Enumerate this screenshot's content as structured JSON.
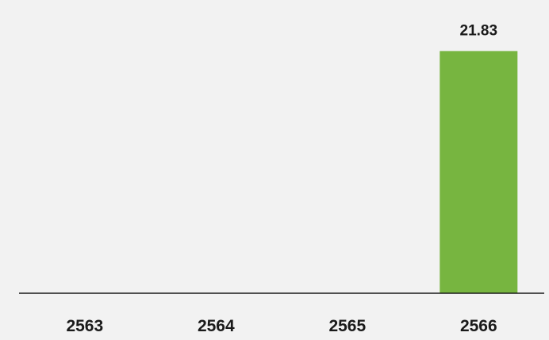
{
  "chart_data": {
    "type": "bar",
    "categories": [
      "2563",
      "2564",
      "2565",
      "2566"
    ],
    "values": [
      null,
      null,
      null,
      21.83
    ],
    "value_labels": [
      "",
      "",
      "",
      "21.83"
    ],
    "title": "",
    "xlabel": "",
    "ylabel": "",
    "ylim": [
      0,
      24
    ],
    "grid": false,
    "legend": "none",
    "colors": {
      "bar": "#77b540",
      "background": "#f2f2f2",
      "axis": "#1a1a1a",
      "text": "#1a1a1a"
    }
  }
}
